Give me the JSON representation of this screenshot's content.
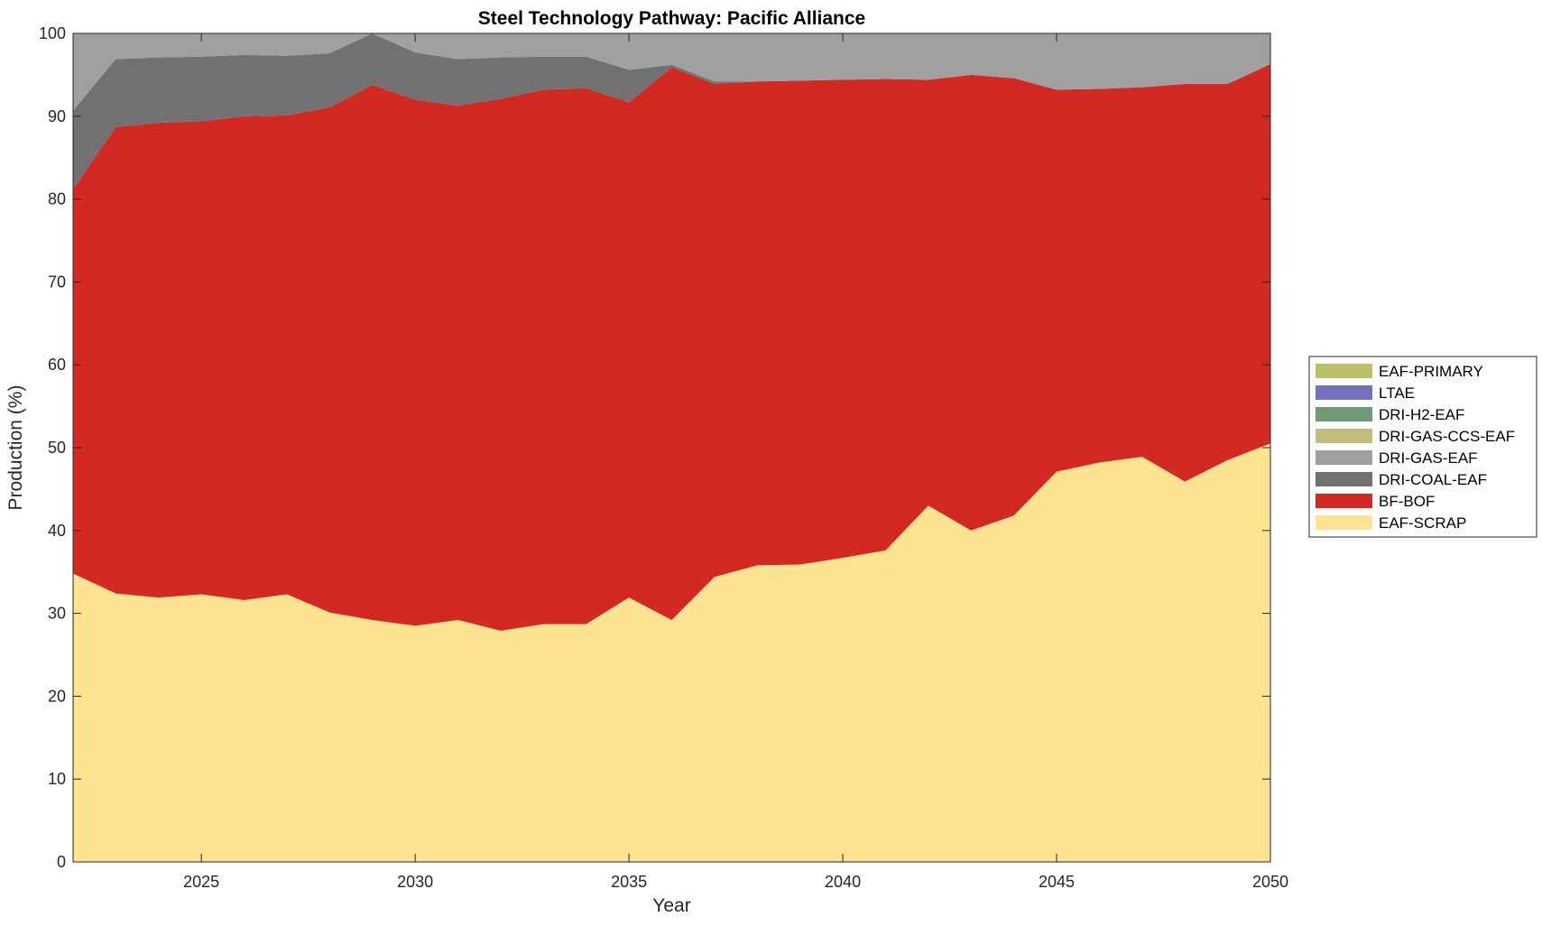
{
  "chart_data": {
    "type": "area",
    "stacked": true,
    "title": "Steel Technology Pathway: Pacific Alliance",
    "xlabel": "Year",
    "ylabel": "Production (%)",
    "xlim": [
      2022,
      2050
    ],
    "ylim": [
      0,
      100
    ],
    "x_ticks": [
      2025,
      2030,
      2035,
      2040,
      2045,
      2050
    ],
    "y_ticks": [
      0,
      10,
      20,
      30,
      40,
      50,
      60,
      70,
      80,
      90,
      100
    ],
    "grid": false,
    "legend_position": "right",
    "x": [
      2022,
      2023,
      2024,
      2025,
      2026,
      2027,
      2028,
      2029,
      2030,
      2031,
      2032,
      2033,
      2034,
      2035,
      2036,
      2037,
      2038,
      2039,
      2040,
      2041,
      2042,
      2043,
      2044,
      2045,
      2046,
      2047,
      2048,
      2049,
      2050
    ],
    "series": [
      {
        "name": "EAF-SCRAP",
        "color": "#FEE391",
        "values": [
          34.8,
          32.4,
          31.9,
          32.3,
          31.6,
          32.3,
          30.1,
          29.2,
          28.5,
          29.2,
          27.9,
          28.7,
          28.7,
          31.9,
          29.2,
          34.4,
          35.8,
          35.9,
          36.7,
          37.6,
          43.0,
          40.0,
          41.8,
          47.1,
          48.2,
          48.9,
          45.9,
          48.5,
          50.5
        ]
      },
      {
        "name": "BF-BOF",
        "color": "#D22A23",
        "values": [
          46.4,
          56.3,
          57.3,
          57.1,
          58.4,
          57.8,
          61.0,
          64.6,
          63.5,
          62.1,
          64.2,
          64.5,
          64.7,
          59.8,
          66.7,
          59.5,
          58.4,
          58.4,
          57.7,
          56.9,
          51.4,
          55.0,
          52.8,
          46.1,
          45.1,
          44.6,
          48.0,
          45.4,
          45.8
        ]
      },
      {
        "name": "DRI-COAL-EAF",
        "color": "#717171",
        "values": [
          9.5,
          8.2,
          7.9,
          7.8,
          7.4,
          7.2,
          6.5,
          6.2,
          5.7,
          5.6,
          5.0,
          4.0,
          3.8,
          3.9,
          0.3,
          0.3,
          0,
          0,
          0,
          0,
          0,
          0,
          0,
          0,
          0,
          0,
          0,
          0,
          0
        ]
      },
      {
        "name": "DRI-GAS-EAF",
        "color": "#A0A0A0",
        "values": [
          9.3,
          3.1,
          2.9,
          2.8,
          2.6,
          2.7,
          2.4,
          0.0,
          2.3,
          3.1,
          2.9,
          2.8,
          2.8,
          4.4,
          3.8,
          5.8,
          5.8,
          5.7,
          5.6,
          5.5,
          5.6,
          5.0,
          5.4,
          6.8,
          6.7,
          6.5,
          6.1,
          6.1,
          3.7
        ]
      },
      {
        "name": "DRI-GAS-CCS-EAF",
        "color": "#C4BC7C",
        "values": [
          0,
          0,
          0,
          0,
          0,
          0,
          0,
          0,
          0,
          0,
          0,
          0,
          0,
          0,
          0,
          0,
          0,
          0,
          0,
          0,
          0,
          0,
          0,
          0,
          0,
          0,
          0,
          0,
          0
        ]
      },
      {
        "name": "DRI-H2-EAF",
        "color": "#6E9A77",
        "values": [
          0,
          0,
          0,
          0,
          0,
          0,
          0,
          0,
          0,
          0,
          0,
          0,
          0,
          0,
          0,
          0,
          0,
          0,
          0,
          0,
          0,
          0,
          0,
          0,
          0,
          0,
          0,
          0,
          0
        ]
      },
      {
        "name": "LTAE",
        "color": "#7570BF",
        "values": [
          0,
          0,
          0,
          0,
          0,
          0,
          0,
          0,
          0,
          0,
          0,
          0,
          0,
          0,
          0,
          0,
          0,
          0,
          0,
          0,
          0,
          0,
          0,
          0,
          0,
          0,
          0,
          0,
          0
        ]
      },
      {
        "name": "EAF-PRIMARY",
        "color": "#BCC067",
        "values": [
          0,
          0,
          0,
          0,
          0,
          0,
          0,
          0,
          0,
          0,
          0,
          0,
          0,
          0,
          0,
          0,
          0,
          0,
          0,
          0,
          0,
          0,
          0,
          0,
          0,
          0,
          0,
          0,
          0
        ]
      }
    ],
    "legend_order": [
      "EAF-PRIMARY",
      "LTAE",
      "DRI-H2-EAF",
      "DRI-GAS-CCS-EAF",
      "DRI-GAS-EAF",
      "DRI-COAL-EAF",
      "BF-BOF",
      "EAF-SCRAP"
    ]
  }
}
